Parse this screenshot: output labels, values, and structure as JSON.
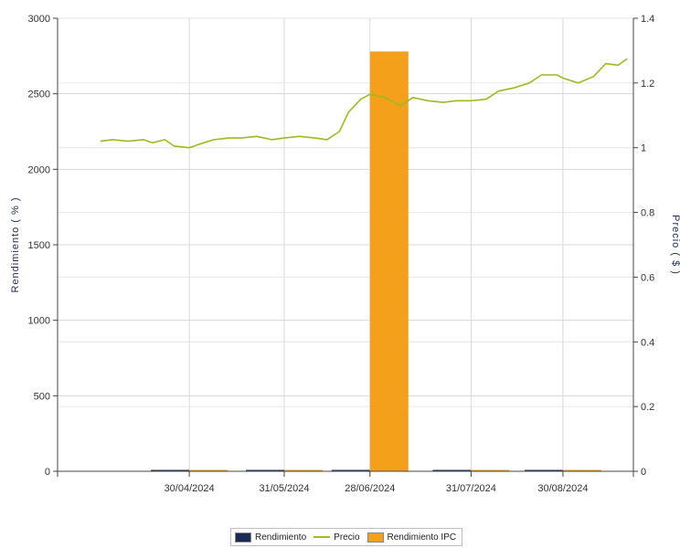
{
  "chart_data": {
    "type": "bar",
    "title": "",
    "ylabel": "Rendimiento ( % )",
    "y2label": "Precio ( $ )",
    "ylim": [
      0,
      3000
    ],
    "y2lim": [
      0,
      1.4
    ],
    "yticks": [
      "0",
      "500",
      "1000",
      "1500",
      "2000",
      "2500",
      "3000"
    ],
    "y2ticks": [
      "0",
      "0.2",
      "0.4",
      "0.6",
      "0.8",
      "1",
      "1.2",
      "1.4"
    ],
    "categories": [
      "30/04/2024",
      "31/05/2024",
      "28/06/2024",
      "31/07/2024",
      "30/08/2024"
    ],
    "grid": true,
    "legend_position": "bottom",
    "series": [
      {
        "name": "Rendimiento",
        "kind": "bar",
        "axis": "left",
        "color": "#1a2a55",
        "values": [
          2,
          3,
          4,
          3,
          2
        ]
      },
      {
        "name": "Rendimiento IPC",
        "kind": "bar",
        "axis": "left",
        "color": "#f5a01a",
        "values": [
          1,
          1,
          2780,
          1,
          1
        ]
      },
      {
        "name": "Precio",
        "kind": "line",
        "axis": "right",
        "color": "#9bbb1e",
        "x": [
          "01/04/2024",
          "05/04/2024",
          "10/04/2024",
          "15/04/2024",
          "18/04/2024",
          "22/04/2024",
          "25/04/2024",
          "30/04/2024",
          "03/05/2024",
          "08/05/2024",
          "13/05/2024",
          "17/05/2024",
          "22/05/2024",
          "27/05/2024",
          "31/05/2024",
          "05/06/2024",
          "10/06/2024",
          "14/06/2024",
          "18/06/2024",
          "21/06/2024",
          "25/06/2024",
          "28/06/2024",
          "03/07/2024",
          "08/07/2024",
          "12/07/2024",
          "17/07/2024",
          "22/07/2024",
          "26/07/2024",
          "31/07/2024",
          "05/08/2024",
          "09/08/2024",
          "14/08/2024",
          "19/08/2024",
          "23/08/2024",
          "28/08/2024",
          "30/08/2024",
          "04/09/2024",
          "09/09/2024",
          "13/09/2024",
          "17/09/2024",
          "20/09/2024"
        ],
        "values": [
          1.02,
          1.025,
          1.02,
          1.025,
          1.015,
          1.025,
          1.005,
          1.0,
          1.01,
          1.025,
          1.03,
          1.03,
          1.035,
          1.025,
          1.03,
          1.035,
          1.03,
          1.025,
          1.05,
          1.11,
          1.15,
          1.165,
          1.155,
          1.13,
          1.155,
          1.145,
          1.14,
          1.145,
          1.145,
          1.15,
          1.175,
          1.185,
          1.2,
          1.225,
          1.225,
          1.215,
          1.2,
          1.22,
          1.26,
          1.255,
          1.275
        ]
      }
    ]
  },
  "legend": {
    "items": [
      {
        "label": "Rendimiento",
        "kind": "box",
        "color": "#1a2a55"
      },
      {
        "label": "Precio",
        "kind": "line",
        "color": "#9bbb1e"
      },
      {
        "label": "Rendimiento IPC",
        "kind": "box",
        "color": "#f5a01a"
      }
    ]
  }
}
